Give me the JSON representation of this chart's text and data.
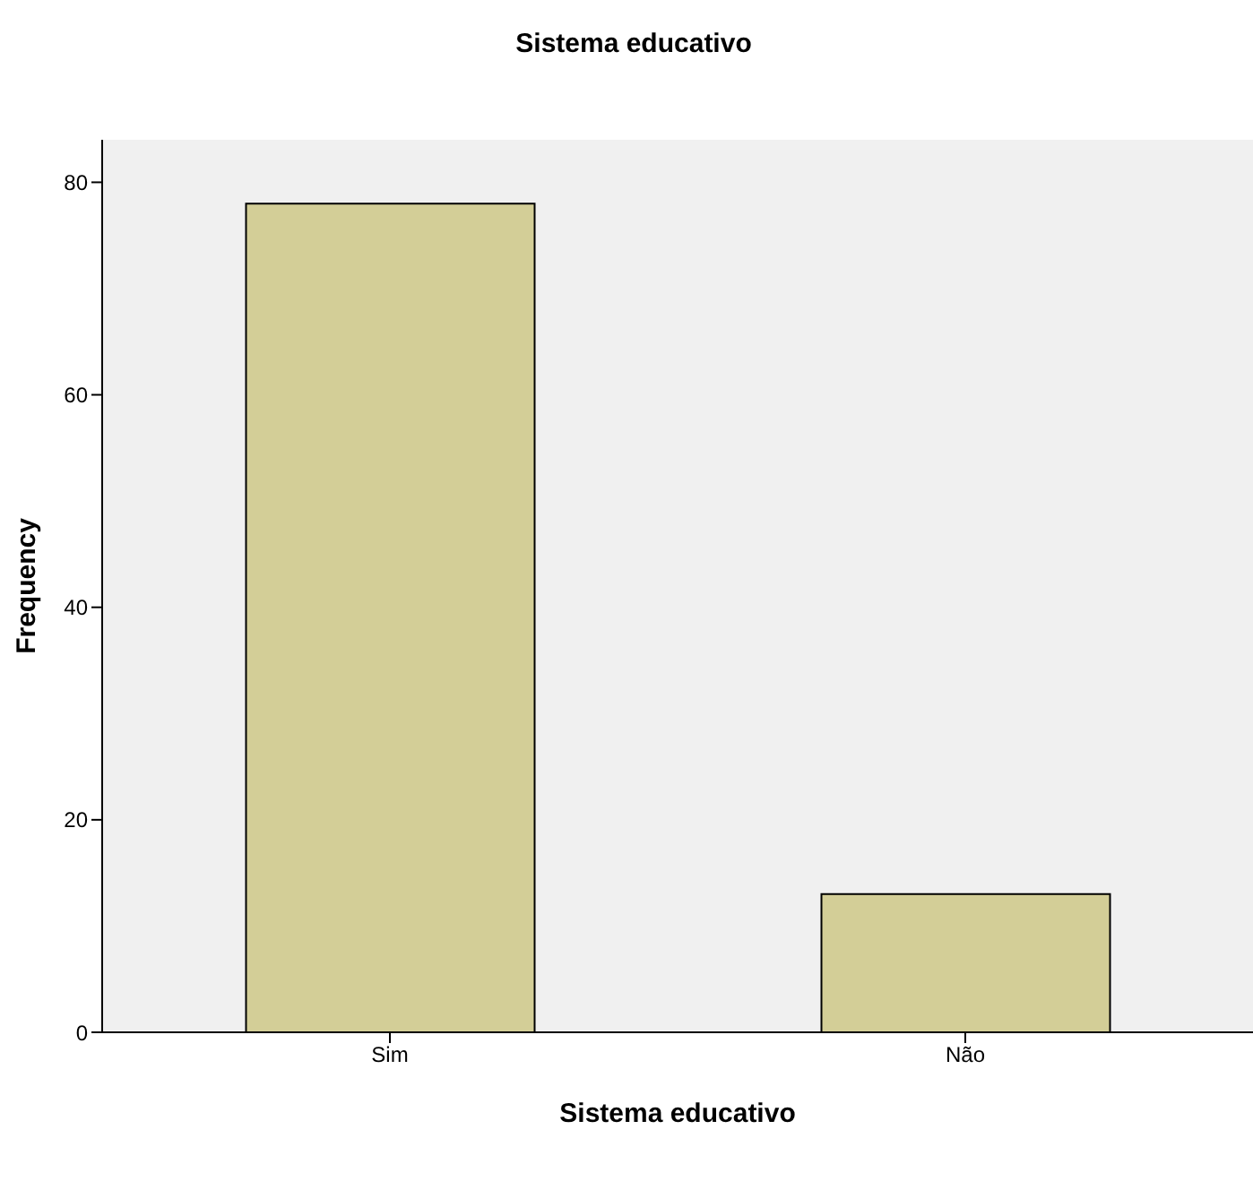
{
  "chart_data": {
    "type": "bar",
    "title": "Sistema educativo",
    "xlabel": "Sistema educativo",
    "ylabel": "Frequency",
    "categories": [
      "Sim",
      "Não"
    ],
    "values": [
      78,
      13
    ],
    "color": "#d3ce97",
    "ylim": [
      0,
      84
    ],
    "yticks": [
      0,
      20,
      40,
      60,
      80
    ],
    "grid": false
  }
}
